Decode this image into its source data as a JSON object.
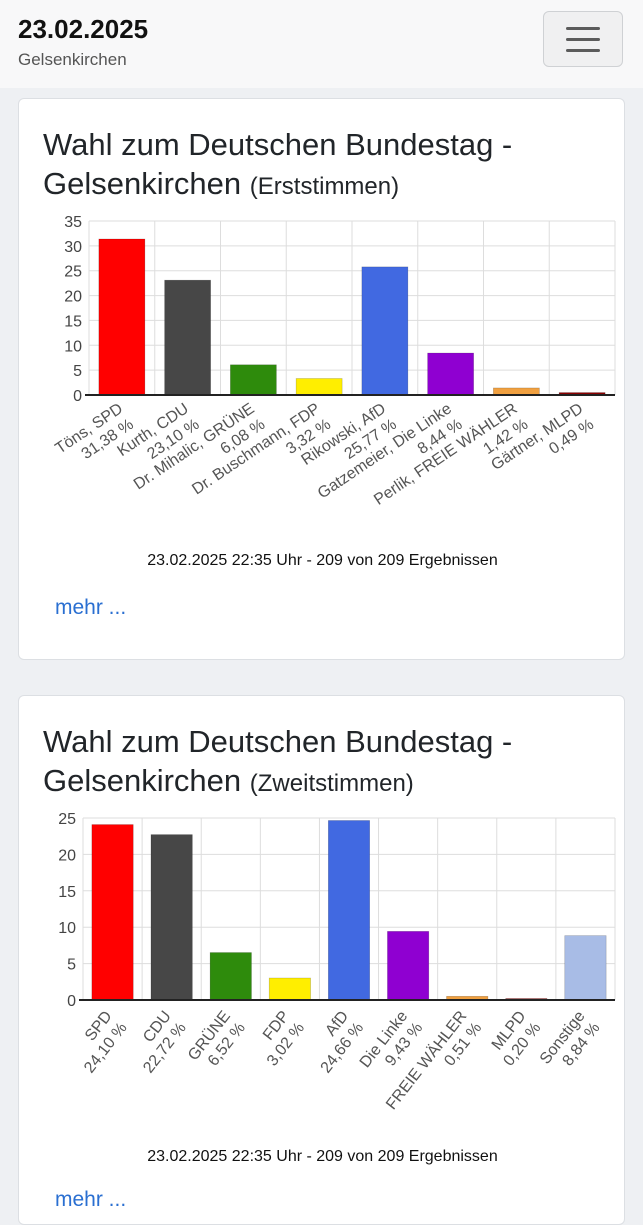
{
  "header": {
    "date": "23.02.2025",
    "city": "Gelsenkirchen"
  },
  "cards": [
    {
      "title": "Wahl zum Deutschen Bundestag - Gelsenkirchen",
      "subtitle": "(Erststimmen)",
      "timestamp": "23.02.2025 22:35 Uhr - 209 von 209 Ergebnissen",
      "more_label": "mehr ..."
    },
    {
      "title": "Wahl zum Deutschen Bundestag - Gelsenkirchen",
      "subtitle": "(Zweitstimmen)",
      "timestamp": "23.02.2025 22:35 Uhr - 209 von 209 Ergebnissen",
      "more_label": "mehr ..."
    }
  ],
  "chart_data": [
    {
      "type": "bar",
      "categories": [
        "Töns, SPD",
        "Kurth, CDU",
        "Dr. Mihalic, GRÜNE",
        "Dr. Buschmann, FDP",
        "Rikowski, AfD",
        "Gatzemeier, Die Linke",
        "Perlik, FREIE WÄHLER",
        "Gärtner, MLPD"
      ],
      "value_labels": [
        "31,38 %",
        "23,10 %",
        "6,08 %",
        "3,32 %",
        "25,77 %",
        "8,44 %",
        "1,42 %",
        "0,49 %"
      ],
      "values": [
        31.38,
        23.1,
        6.08,
        3.32,
        25.77,
        8.44,
        1.42,
        0.49
      ],
      "colors": [
        "#ff0000",
        "#474747",
        "#2e8b0c",
        "#ffee00",
        "#4169e1",
        "#8f00d1",
        "#f0a040",
        "#8b0000"
      ],
      "yticks": [
        0,
        5,
        10,
        15,
        20,
        25,
        30,
        35
      ],
      "ylim": [
        0,
        35
      ],
      "grid": true
    },
    {
      "type": "bar",
      "categories": [
        "SPD",
        "CDU",
        "GRÜNE",
        "FDP",
        "AfD",
        "Die Linke",
        "FREIE WÄHLER",
        "MLPD",
        "Sonstige"
      ],
      "value_labels": [
        "24,10 %",
        "22,72 %",
        "6,52 %",
        "3,02 %",
        "24,66 %",
        "9,43 %",
        "0,51 %",
        "0,20 %",
        "8,84 %"
      ],
      "values": [
        24.1,
        22.72,
        6.52,
        3.02,
        24.66,
        9.43,
        0.51,
        0.2,
        8.84
      ],
      "colors": [
        "#ff0000",
        "#474747",
        "#2e8b0c",
        "#ffee00",
        "#4169e1",
        "#8f00d1",
        "#f0a040",
        "#8b0000",
        "#a8bce6"
      ],
      "yticks": [
        0,
        5,
        10,
        15,
        20,
        25
      ],
      "ylim": [
        0,
        25
      ],
      "grid": true
    }
  ]
}
